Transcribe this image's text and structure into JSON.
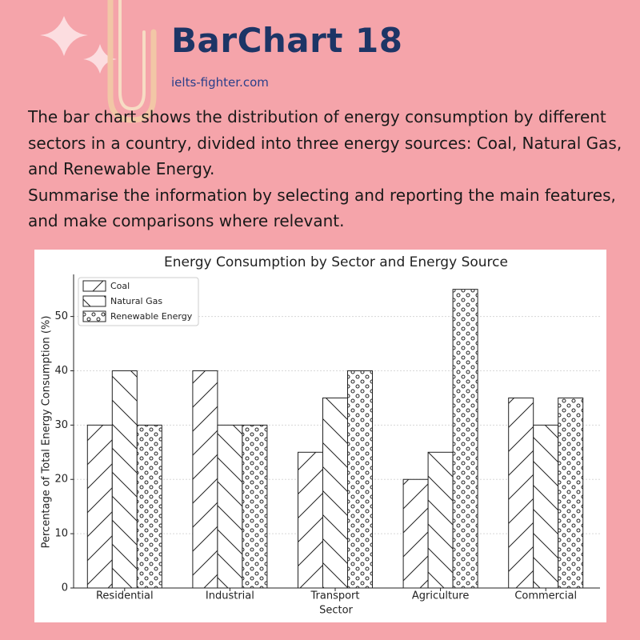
{
  "header": {
    "title": "BarChart 18",
    "site": "ielts-fighter.com"
  },
  "prompt": [
    "The bar chart shows the distribution of energy consumption by different sectors in a country, divided into three energy sources: Coal, Natural Gas, and Renewable Energy.",
    "Summarise the information by selecting and reporting the main features, and make comparisons where relevant."
  ],
  "chart_data": {
    "type": "bar",
    "title": "Energy Consumption by Sector and Energy Source",
    "x_label": "Sector",
    "y_label": "Percentage of Total Energy Consumption (%)",
    "categories": [
      "Residential",
      "Industrial",
      "Transport",
      "Agriculture",
      "Commercial"
    ],
    "series": [
      {
        "name": "Coal",
        "color": "#ffffff",
        "hatch": "/",
        "values": [
          30,
          40,
          25,
          20,
          35
        ]
      },
      {
        "name": "Natural Gas",
        "color": "#ffffff",
        "hatch": "\\",
        "values": [
          40,
          30,
          35,
          25,
          30
        ]
      },
      {
        "name": "Renewable Energy",
        "color": "#ffffff",
        "hatch": "o",
        "values": [
          30,
          30,
          40,
          55,
          35
        ]
      }
    ],
    "ylim": [
      0,
      57.75
    ],
    "yticks": [
      0,
      10,
      20,
      30,
      40,
      50
    ],
    "grid": true,
    "legend": "upper left"
  }
}
